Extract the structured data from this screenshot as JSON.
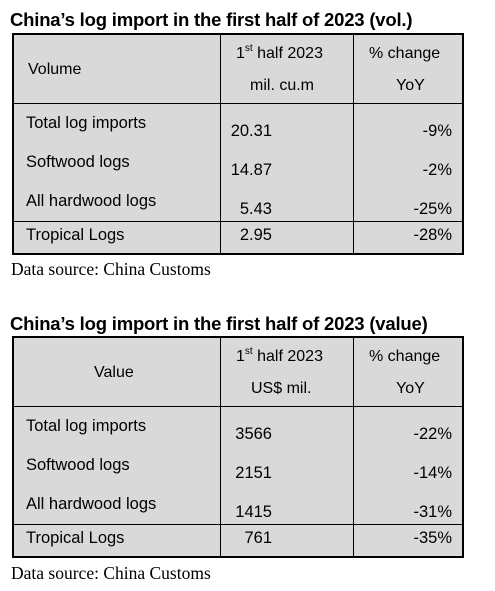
{
  "tables": [
    {
      "title": "China’s log import in the first half of 2023 (vol.)",
      "header": {
        "label": "Volume",
        "col1_line1_num": "1",
        "col1_line1_sup": "st",
        "col1_line1_rest": " half 2023",
        "col1_line2": "mil. cu.m",
        "col2_line1": "% change",
        "col2_line2": "YoY"
      },
      "rows": [
        {
          "label": "Total log imports",
          "value": "20.31",
          "change": "-9%"
        },
        {
          "label": "Softwood logs",
          "value": "14.87",
          "change": "-2%"
        },
        {
          "label": "All hardwood logs",
          "value": "5.43",
          "change": "-25%"
        },
        {
          "label": "Tropical Logs",
          "value": "2.95",
          "change": "-28%"
        }
      ],
      "source": "Data source: China Customs"
    },
    {
      "title": "China’s log import in the first half of 2023 (value)",
      "header": {
        "label": "Value",
        "col1_line1_num": "1",
        "col1_line1_sup": "st",
        "col1_line1_rest": " half 2023",
        "col1_line2": "US$ mil.",
        "col2_line1": "% change",
        "col2_line2": "YoY"
      },
      "rows": [
        {
          "label": "Total log imports",
          "value": "3566",
          "change": "-22%"
        },
        {
          "label": "Softwood logs",
          "value": "2151",
          "change": "-14%"
        },
        {
          "label": "All hardwood logs",
          "value": "1415",
          "change": "-31%"
        },
        {
          "label": "Tropical Logs",
          "value": "761",
          "change": "-35%"
        }
      ],
      "source": "Data source: China Customs"
    }
  ]
}
